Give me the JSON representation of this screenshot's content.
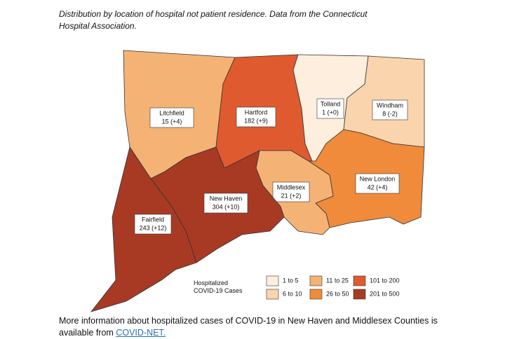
{
  "subtitle": "Distribution by location of hospital not patient residence. Data from the Connecticut Hospital Association.",
  "counties": [
    {
      "name": "Litchfield",
      "stat": "15 (+4)",
      "color": "#f5b275"
    },
    {
      "name": "Hartford",
      "stat": "182 (+9)",
      "color": "#e05a30"
    },
    {
      "name": "Tolland",
      "stat": "1 (+0)",
      "color": "#fdeedd"
    },
    {
      "name": "Windham",
      "stat": "8 (-2)",
      "color": "#fad4ac"
    },
    {
      "name": "New London",
      "stat": "42 (+4)",
      "color": "#f08b3b"
    },
    {
      "name": "Middlesex",
      "stat": "21 (+2)",
      "color": "#f5b275"
    },
    {
      "name": "New Haven",
      "stat": "304 (+10)",
      "color": "#a83a23"
    },
    {
      "name": "Fairfield",
      "stat": "243 (+12)",
      "color": "#a83a23"
    }
  ],
  "legend": {
    "title": "Hospitalized COVID-19 Cases",
    "bins": [
      {
        "label": "1 to 5",
        "color": "#fdeedd"
      },
      {
        "label": "6 to 10",
        "color": "#fad4ac"
      },
      {
        "label": "11 to 25",
        "color": "#f5b275"
      },
      {
        "label": "26 to 50",
        "color": "#f08b3b"
      },
      {
        "label": "101 to 200",
        "color": "#e05a30"
      },
      {
        "label": "201 to 500",
        "color": "#a83a23"
      }
    ]
  },
  "footer": {
    "text": "More information about hospitalized cases of COVID-19 in New Haven and Middlesex Counties is available from",
    "link": "COVID-NET."
  }
}
